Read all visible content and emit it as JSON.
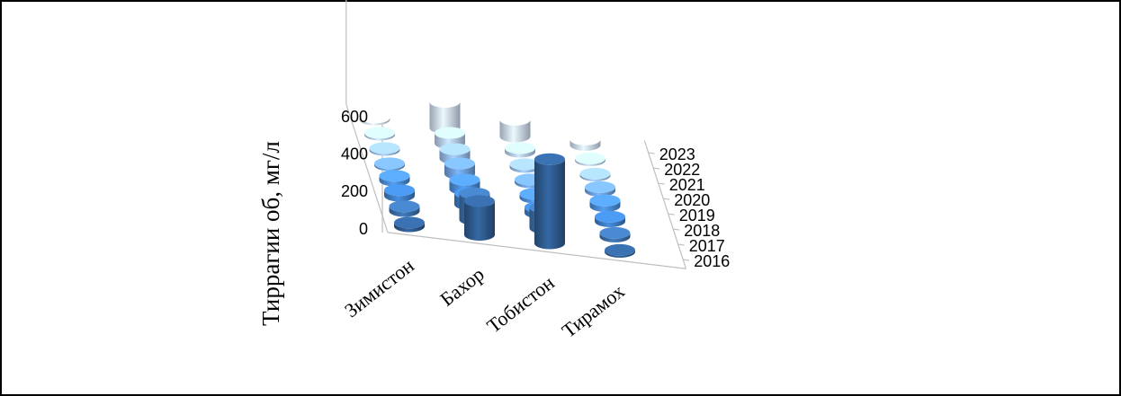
{
  "chart_data": {
    "type": "bar",
    "style": "3d-cylinder",
    "title": "",
    "ylabel": "Тирpагии об, мг/л",
    "ylim": [
      0,
      600
    ],
    "yticks": [
      "0",
      "200",
      "400",
      "600"
    ],
    "categories": [
      "Зимистон",
      "Бахор",
      "Тобистон",
      "Тирамох"
    ],
    "series": [
      {
        "name": "2016",
        "color": "#2e5b8f",
        "values": [
          20,
          180,
          450,
          10
        ]
      },
      {
        "name": "2017",
        "color": "#3a6ea8",
        "values": [
          25,
          140,
          110,
          20
        ]
      },
      {
        "name": "2018",
        "color": "#3d7cc4",
        "values": [
          30,
          60,
          30,
          25
        ]
      },
      {
        "name": "2019",
        "color": "#4a8bd4",
        "values": [
          25,
          50,
          20,
          30
        ]
      },
      {
        "name": "2020",
        "color": "#6d9fdb",
        "values": [
          10,
          55,
          15,
          20
        ]
      },
      {
        "name": "2021",
        "color": "#94b8e4",
        "values": [
          10,
          50,
          15,
          10
        ]
      },
      {
        "name": "2022",
        "color": "#b4cbea",
        "values": [
          10,
          55,
          20,
          10
        ]
      },
      {
        "name": "2023",
        "color": "#ccd9f0",
        "values": [
          10,
          140,
          90,
          30
        ]
      }
    ],
    "legend": "none",
    "grid": false
  }
}
